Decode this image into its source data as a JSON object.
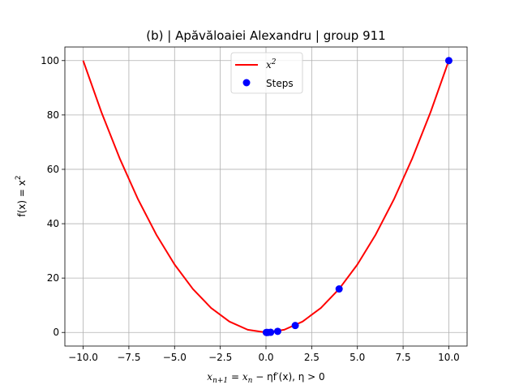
{
  "chart_data": {
    "type": "line",
    "title": "(b) | Apăvăloaiei Alexandru | group 911",
    "xlabel": {
      "lhs": "x",
      "lhs_sub": "n+1",
      "eq": " = ",
      "rhs": "x",
      "rhs_sub": "n",
      "rest": " − ηf′(x), η > 0"
    },
    "ylabel": {
      "text": "f(x) = x",
      "sup": "2"
    },
    "xlim": [
      -11,
      11
    ],
    "ylim": [
      -5,
      105
    ],
    "xticks": [
      -10,
      -7.5,
      -5,
      -2.5,
      0,
      2.5,
      5,
      7.5,
      10
    ],
    "xtick_labels": [
      "−10.0",
      "−7.5",
      "−5.0",
      "−2.5",
      "0.0",
      "2.5",
      "5.0",
      "7.5",
      "10.0"
    ],
    "yticks": [
      0,
      20,
      40,
      60,
      80,
      100
    ],
    "ytick_labels": [
      "0",
      "20",
      "40",
      "60",
      "80",
      "100"
    ],
    "grid": true,
    "legend_position": "upper-center",
    "series": [
      {
        "name": "x",
        "name_sup": "2",
        "kind": "line",
        "color": "#ff0000",
        "x": [
          -10,
          -9,
          -8,
          -7,
          -6,
          -5,
          -4,
          -3,
          -2,
          -1,
          0,
          1,
          2,
          3,
          4,
          5,
          6,
          7,
          8,
          9,
          10
        ],
        "y": [
          100,
          81,
          64,
          49,
          36,
          25,
          16,
          9,
          4,
          1,
          0,
          1,
          4,
          9,
          16,
          25,
          36,
          49,
          64,
          81,
          100
        ]
      },
      {
        "name": "Steps",
        "kind": "scatter",
        "color": "#0000ff",
        "x": [
          10,
          4,
          1.6,
          0.64,
          0.256,
          0.1024,
          0.04096,
          0.016384
        ],
        "y": [
          100,
          16,
          2.56,
          0.4096,
          0.065536,
          0.010486,
          0.001678,
          0.000268
        ]
      }
    ]
  }
}
